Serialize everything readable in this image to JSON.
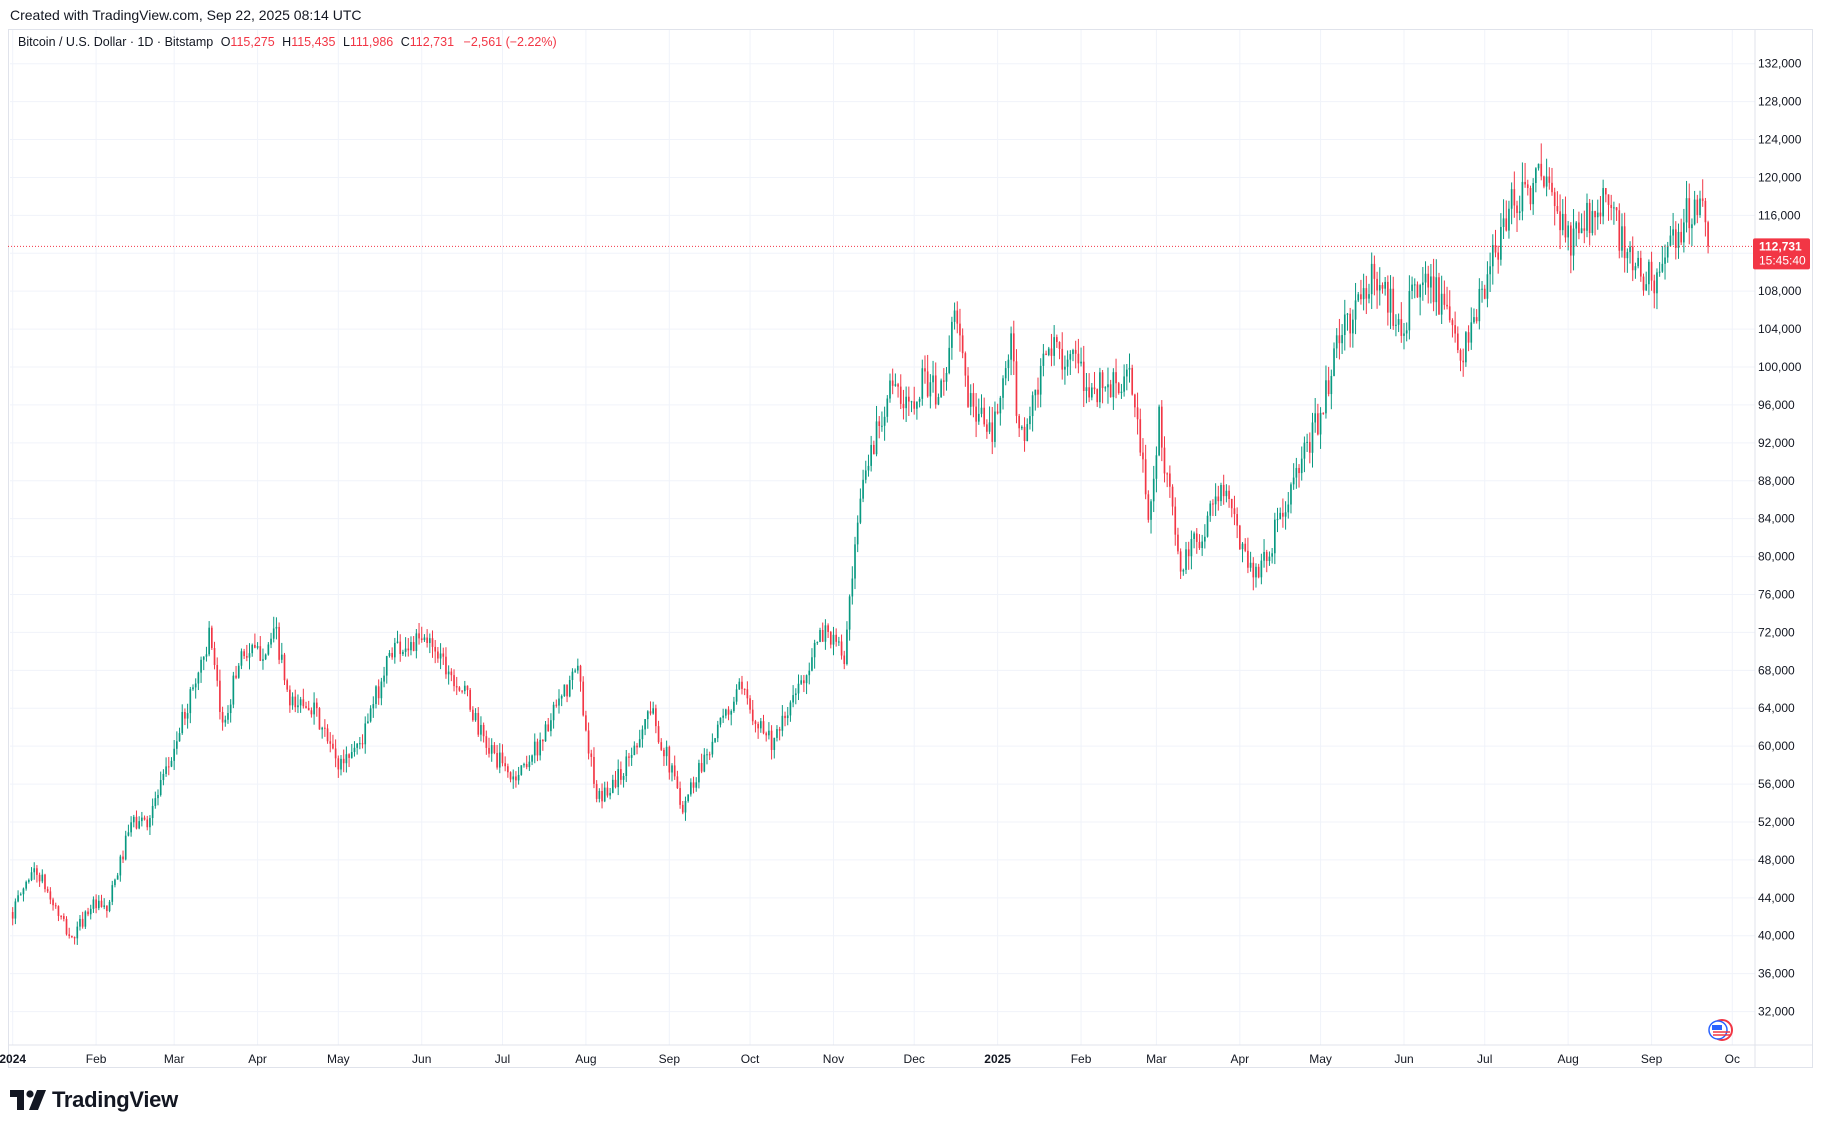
{
  "header": {
    "created_text": "Created with TradingView.com, Sep 22, 2025 08:14 UTC"
  },
  "legend": {
    "symbol": "Bitcoin / U.S. Dollar · 1D · Bitstamp",
    "open_label": "O",
    "open_value": "115,275",
    "high_label": "H",
    "high_value": "115,435",
    "low_label": "L",
    "low_value": "111,986",
    "close_label": "C",
    "close_value": "112,731",
    "change_value": "−2,561 (−2.22%)"
  },
  "price_tag": {
    "price": "112,731",
    "countdown": "15:45:40"
  },
  "footer": {
    "brand": "TradingView"
  },
  "colors": {
    "up": "#089981",
    "down": "#f23645",
    "grid": "#f0f3fa",
    "axis_text": "#131722"
  },
  "chart_data": {
    "type": "candlestick",
    "title": "Bitcoin / U.S. Dollar · 1D · Bitstamp",
    "xlabel": "",
    "ylabel": "",
    "ylim": [
      29000,
      134500
    ],
    "y_ticks": [
      "32,000",
      "36,000",
      "40,000",
      "44,000",
      "48,000",
      "52,000",
      "56,000",
      "60,000",
      "64,000",
      "68,000",
      "72,000",
      "76,000",
      "80,000",
      "84,000",
      "88,000",
      "92,000",
      "96,000",
      "100,000",
      "104,000",
      "108,000",
      "112,000",
      "116,000",
      "120,000",
      "124,000",
      "128,000",
      "132,000"
    ],
    "x_ticks": [
      {
        "label": "2024",
        "date": "2024-01-01",
        "bold": true
      },
      {
        "label": "Feb",
        "date": "2024-02-01"
      },
      {
        "label": "Mar",
        "date": "2024-03-01"
      },
      {
        "label": "Apr",
        "date": "2024-04-01"
      },
      {
        "label": "May",
        "date": "2024-05-01"
      },
      {
        "label": "Jun",
        "date": "2024-06-01"
      },
      {
        "label": "Jul",
        "date": "2024-07-01"
      },
      {
        "label": "Aug",
        "date": "2024-08-01"
      },
      {
        "label": "Sep",
        "date": "2024-09-01"
      },
      {
        "label": "Oct",
        "date": "2024-10-01"
      },
      {
        "label": "Nov",
        "date": "2024-11-01"
      },
      {
        "label": "Dec",
        "date": "2024-12-01"
      },
      {
        "label": "2025",
        "date": "2025-01-01",
        "bold": true
      },
      {
        "label": "Feb",
        "date": "2025-02-01"
      },
      {
        "label": "Mar",
        "date": "2025-03-01"
      },
      {
        "label": "Apr",
        "date": "2025-04-01"
      },
      {
        "label": "May",
        "date": "2025-05-01"
      },
      {
        "label": "Jun",
        "date": "2025-06-01"
      },
      {
        "label": "Jul",
        "date": "2025-07-01"
      },
      {
        "label": "Aug",
        "date": "2025-08-01"
      },
      {
        "label": "Sep",
        "date": "2025-09-01"
      },
      {
        "label": "Oc",
        "date": "2025-10-01"
      }
    ],
    "x_range": [
      "2023-12-31",
      "2025-10-02"
    ],
    "last_price": 112731,
    "close_anchors": [
      [
        "2024-01-01",
        42500
      ],
      [
        "2024-01-08",
        46900
      ],
      [
        "2024-01-11",
        46300
      ],
      [
        "2024-01-17",
        42800
      ],
      [
        "2024-01-23",
        39500
      ],
      [
        "2024-01-30",
        43300
      ],
      [
        "2024-02-05",
        42600
      ],
      [
        "2024-02-14",
        51800
      ],
      [
        "2024-02-20",
        52200
      ],
      [
        "2024-02-27",
        57000
      ],
      [
        "2024-03-05",
        63500
      ],
      [
        "2024-03-14",
        71500
      ],
      [
        "2024-03-19",
        62000
      ],
      [
        "2024-03-26",
        70000
      ],
      [
        "2024-04-01",
        69700
      ],
      [
        "2024-04-08",
        71600
      ],
      [
        "2024-04-13",
        64000
      ],
      [
        "2024-04-20",
        64900
      ],
      [
        "2024-05-01",
        58000
      ],
      [
        "2024-05-10",
        60800
      ],
      [
        "2024-05-21",
        70500
      ],
      [
        "2024-06-05",
        71000
      ],
      [
        "2024-06-18",
        65000
      ],
      [
        "2024-06-24",
        60500
      ],
      [
        "2024-07-05",
        56500
      ],
      [
        "2024-07-14",
        60000
      ],
      [
        "2024-07-29",
        68200
      ],
      [
        "2024-08-05",
        54000
      ],
      [
        "2024-08-15",
        57500
      ],
      [
        "2024-08-25",
        64000
      ],
      [
        "2024-09-06",
        53800
      ],
      [
        "2024-09-15",
        59500
      ],
      [
        "2024-09-27",
        65800
      ],
      [
        "2024-10-10",
        60200
      ],
      [
        "2024-10-21",
        67500
      ],
      [
        "2024-10-29",
        72500
      ],
      [
        "2024-11-05",
        69200
      ],
      [
        "2024-11-12",
        88000
      ],
      [
        "2024-11-22",
        98500
      ],
      [
        "2024-11-27",
        95500
      ],
      [
        "2024-12-05",
        99000
      ],
      [
        "2024-12-10",
        96500
      ],
      [
        "2024-12-17",
        106000
      ],
      [
        "2024-12-20",
        97500
      ],
      [
        "2024-12-30",
        92500
      ],
      [
        "2025-01-06",
        102200
      ],
      [
        "2025-01-09",
        92800
      ],
      [
        "2025-01-13",
        94500
      ],
      [
        "2025-01-20",
        102000
      ],
      [
        "2025-01-28",
        101200
      ],
      [
        "2025-02-03",
        97700
      ],
      [
        "2025-02-20",
        98300
      ],
      [
        "2025-02-26",
        84300
      ],
      [
        "2025-03-02",
        94200
      ],
      [
        "2025-03-10",
        78500
      ],
      [
        "2025-03-18",
        82700
      ],
      [
        "2025-03-25",
        87500
      ],
      [
        "2025-04-06",
        78300
      ],
      [
        "2025-04-10",
        79600
      ],
      [
        "2025-04-21",
        87500
      ],
      [
        "2025-04-30",
        94300
      ],
      [
        "2025-05-08",
        103000
      ],
      [
        "2025-05-21",
        109700
      ],
      [
        "2025-05-31",
        104600
      ],
      [
        "2025-06-10",
        110200
      ],
      [
        "2025-06-22",
        100900
      ],
      [
        "2025-06-30",
        107200
      ],
      [
        "2025-07-11",
        117500
      ],
      [
        "2025-07-22",
        119900
      ],
      [
        "2025-08-02",
        113000
      ],
      [
        "2025-08-14",
        118300
      ],
      [
        "2025-08-25",
        110200
      ],
      [
        "2025-09-01",
        109300
      ],
      [
        "2025-09-07",
        111200
      ],
      [
        "2025-09-13",
        115900
      ],
      [
        "2025-09-18",
        117100
      ],
      [
        "2025-09-21",
        115275
      ],
      [
        "2025-09-22",
        112731
      ]
    ]
  }
}
